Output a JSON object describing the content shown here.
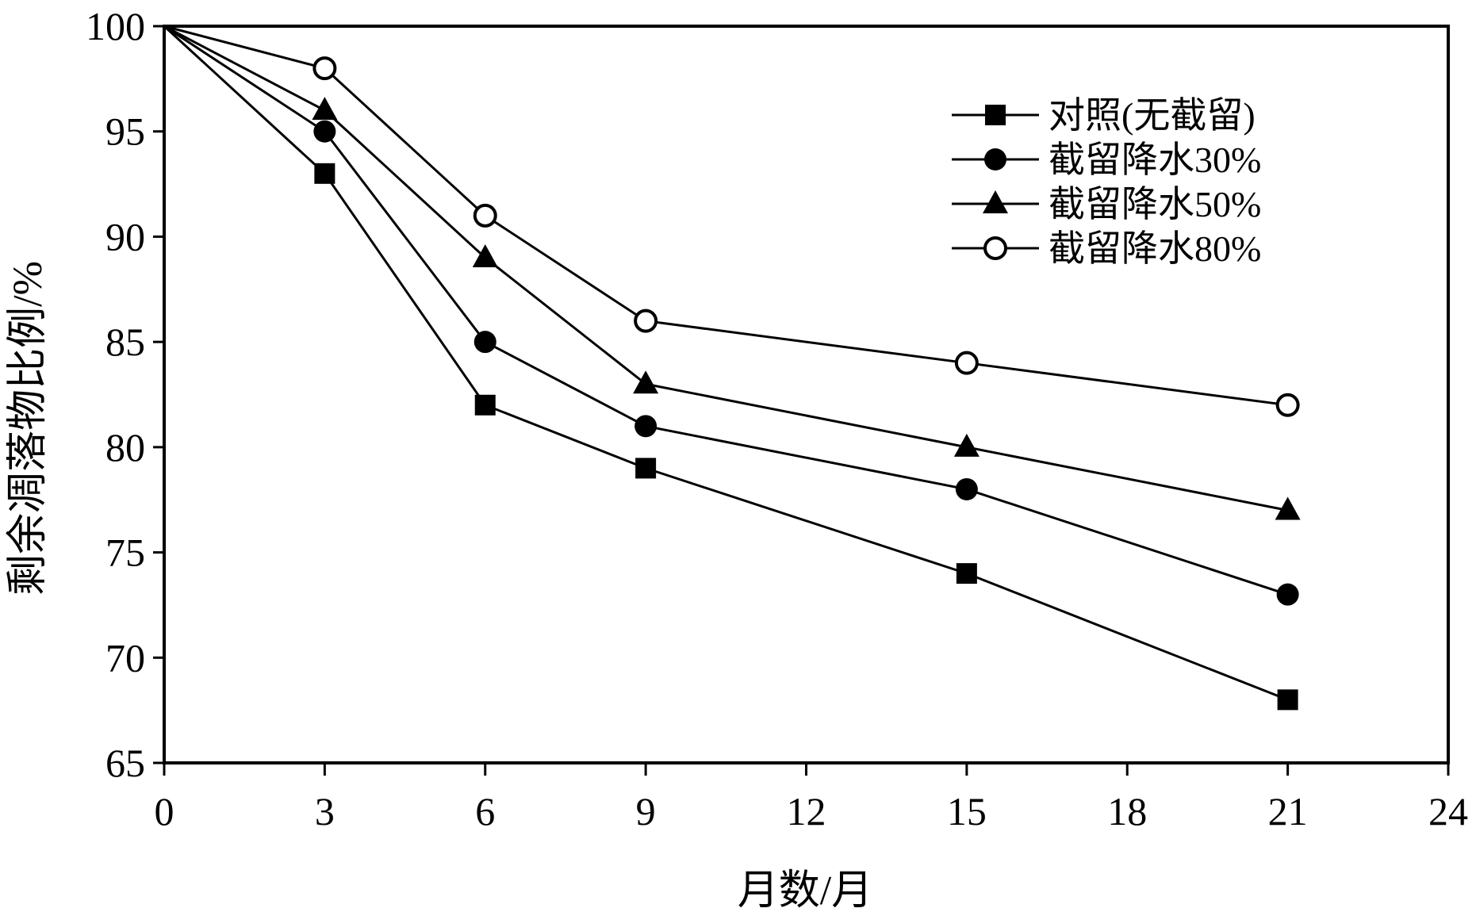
{
  "chart_data": {
    "type": "line",
    "title": "",
    "xlabel": "月数/月",
    "ylabel": "剩余凋落物比例/%",
    "xlim": [
      0,
      24
    ],
    "ylim": [
      65,
      100
    ],
    "xticks": [
      0,
      3,
      6,
      9,
      12,
      15,
      18,
      21,
      24
    ],
    "yticks": [
      65,
      70,
      75,
      80,
      85,
      90,
      95,
      100
    ],
    "grid": false,
    "legend_position": "top-right",
    "x": [
      0,
      3,
      6,
      9,
      15,
      21
    ],
    "series": [
      {
        "name": "对照(无截留)",
        "marker": "square-filled",
        "values": [
          100,
          93,
          82,
          79,
          74,
          68
        ]
      },
      {
        "name": "截留降水30%",
        "marker": "circle-filled",
        "values": [
          100,
          95,
          85,
          81,
          78,
          73
        ]
      },
      {
        "name": "截留降水50%",
        "marker": "triangle-filled",
        "values": [
          100,
          96,
          89,
          83,
          80,
          77
        ]
      },
      {
        "name": "截留降水80%",
        "marker": "circle-open",
        "values": [
          100,
          98,
          91,
          86,
          84,
          82
        ]
      }
    ],
    "colors": {
      "line": "#000000",
      "background": "#ffffff"
    }
  }
}
